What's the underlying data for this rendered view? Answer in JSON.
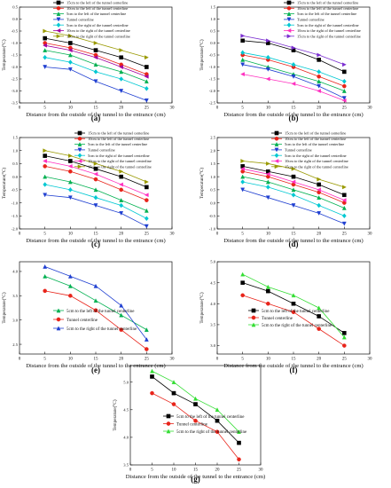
{
  "chart_data": [
    {
      "panel": "(a)",
      "type": "line",
      "xlabel": "Distance from the outside of the tunnel to the entrance (cm)",
      "ylabel": "Temperature(°C)",
      "xlim": [
        0,
        30
      ],
      "ylim": [
        -3.5,
        0.5
      ],
      "xticks": [
        0,
        5,
        10,
        15,
        20,
        25,
        30
      ],
      "yticks": [
        0.5,
        0.0,
        -0.5,
        -1.0,
        -1.5,
        -2.0,
        -2.5,
        -3.0,
        -3.5
      ],
      "legend_position": "top-right",
      "x": [
        5,
        10,
        15,
        20,
        25
      ],
      "series": [
        {
          "name": "15cm to the left of the tunnel centerline",
          "color": "#000000",
          "marker": "square",
          "values": [
            -0.8,
            -1.0,
            -1.3,
            -1.6,
            -2.0
          ]
        },
        {
          "name": "10cm to the left of the tunnel centerline",
          "color": "#e8241a",
          "marker": "circle",
          "values": [
            -1.0,
            -1.2,
            -1.5,
            -1.9,
            -2.3
          ]
        },
        {
          "name": "5cm to the left of the tunnel centerline",
          "color": "#00b050",
          "marker": "triangle-up",
          "values": [
            -1.3,
            -1.5,
            -1.9,
            -2.2,
            -2.6
          ]
        },
        {
          "name": "Tunnel centerline",
          "color": "#1f3fd1",
          "marker": "triangle-down",
          "values": [
            -2.0,
            -2.1,
            -2.6,
            -3.0,
            -3.4
          ]
        },
        {
          "name": "5cm to the right of the tunnel centerline",
          "color": "#00c8d2",
          "marker": "diamond",
          "values": [
            -1.6,
            -1.8,
            -2.2,
            -2.5,
            -2.9
          ]
        },
        {
          "name": "10cm to the right of the tunnel centerline",
          "color": "#a000a0",
          "marker": "triangle-left",
          "values": [
            -1.1,
            -1.3,
            -1.6,
            -2.0,
            -2.4
          ]
        },
        {
          "name": "15cm to the right of the tunnel centerline",
          "color": "#999900",
          "marker": "triangle-right",
          "values": [
            -0.5,
            -0.7,
            -1.0,
            -1.3,
            -1.6
          ]
        }
      ]
    },
    {
      "panel": "(b)",
      "type": "line",
      "xlabel": "Distance from the outside of the tunnel to the entrance (cm)",
      "ylabel": "Temperature(°C)",
      "xlim": [
        0,
        30
      ],
      "ylim": [
        -2.5,
        1.5
      ],
      "xticks": [
        0,
        5,
        10,
        15,
        20,
        25,
        30
      ],
      "yticks": [
        1.5,
        1.0,
        0.5,
        0.0,
        -0.5,
        -1.0,
        -1.5,
        -2.0,
        -2.5
      ],
      "legend_position": "top-right",
      "x": [
        5,
        10,
        15,
        20,
        25
      ],
      "series": [
        {
          "name": "15cm to the left of the tunnel centerline",
          "color": "#000000",
          "marker": "square",
          "values": [
            0.1,
            0.0,
            -0.3,
            -0.7,
            -1.2
          ]
        },
        {
          "name": "10cm to the left of the tunnel centerline",
          "color": "#e8241a",
          "marker": "circle",
          "values": [
            -0.5,
            -0.7,
            -1.0,
            -1.4,
            -1.8
          ]
        },
        {
          "name": "5cm to the left of the tunnel centerline",
          "color": "#00b050",
          "marker": "triangle-up",
          "values": [
            -0.7,
            -1.0,
            -1.3,
            -1.6,
            -2.0
          ]
        },
        {
          "name": "Tunnel centerline",
          "color": "#1f3fd1",
          "marker": "triangle-down",
          "values": [
            -0.9,
            -1.1,
            -1.4,
            -1.8,
            -2.3
          ]
        },
        {
          "name": "5cm to the right of the tunnel centerline",
          "color": "#00c8d2",
          "marker": "diamond",
          "values": [
            -0.4,
            -0.6,
            -0.9,
            -1.2,
            -1.6
          ]
        },
        {
          "name": "10cm to the right of the tunnel centerline",
          "color": "#ff30c0",
          "marker": "triangle-left",
          "values": [
            -1.3,
            -1.5,
            -1.7,
            -2.0,
            -2.4
          ]
        },
        {
          "name": "15cm to the right of the tunnel centerline",
          "color": "#7b2fd0",
          "marker": "triangle-right",
          "values": [
            0.3,
            0.1,
            -0.2,
            -0.5,
            -0.9
          ]
        }
      ]
    },
    {
      "panel": "(c)",
      "type": "line",
      "xlabel": "Distance from the outside of the tunnel to the entrance (cm)",
      "ylabel": "Temperature(°C)",
      "xlim": [
        0,
        30
      ],
      "ylim": [
        -2.0,
        1.5
      ],
      "xticks": [
        0,
        5,
        10,
        15,
        20,
        25,
        30
      ],
      "yticks": [
        1.5,
        1.0,
        0.5,
        0.0,
        -0.5,
        -1.0,
        -1.5,
        -2.0
      ],
      "legend_position": "top-right",
      "x": [
        5,
        10,
        15,
        20,
        25
      ],
      "series": [
        {
          "name": "15cm to the left of the tunnel centerline",
          "color": "#000000",
          "marker": "square",
          "values": [
            0.8,
            0.6,
            0.3,
            0.0,
            -0.4
          ]
        },
        {
          "name": "10cm to the left of the tunnel centerline",
          "color": "#e8241a",
          "marker": "circle",
          "values": [
            0.4,
            0.2,
            -0.1,
            -0.5,
            -0.9
          ]
        },
        {
          "name": "5cm to the left of the tunnel centerline",
          "color": "#00b050",
          "marker": "triangle-up",
          "values": [
            0.0,
            -0.2,
            -0.5,
            -0.9,
            -1.3
          ]
        },
        {
          "name": "Tunnel centerline",
          "color": "#1f3fd1",
          "marker": "triangle-down",
          "values": [
            -0.7,
            -0.8,
            -1.1,
            -1.4,
            -1.9
          ]
        },
        {
          "name": "5cm to the right of the tunnel centerline",
          "color": "#00c8d2",
          "marker": "diamond",
          "values": [
            -0.3,
            -0.5,
            -0.8,
            -1.1,
            -1.6
          ]
        },
        {
          "name": "10cm to the right of the tunnel centerline",
          "color": "#ff30c0",
          "marker": "triangle-left",
          "values": [
            0.6,
            0.4,
            0.1,
            -0.3,
            -0.7
          ]
        },
        {
          "name": "15cm to the right of the tunnel centerline",
          "color": "#999900",
          "marker": "triangle-right",
          "values": [
            1.0,
            0.8,
            0.5,
            0.2,
            -0.2
          ]
        }
      ]
    },
    {
      "panel": "(d)",
      "type": "line",
      "xlabel": "Distance from the outside of the tunnel to the entrance (cm)",
      "ylabel": "Temperature(°C)",
      "xlim": [
        0,
        30
      ],
      "ylim": [
        -1.0,
        2.5
      ],
      "xticks": [
        0,
        5,
        10,
        15,
        20,
        25,
        30
      ],
      "yticks": [
        2.5,
        2.0,
        1.5,
        1.0,
        0.5,
        0.0,
        -0.5,
        -1.0
      ],
      "legend_position": "top-right",
      "x": [
        5,
        10,
        15,
        20,
        25
      ],
      "series": [
        {
          "name": "15cm to the left of the tunnel centerline",
          "color": "#000000",
          "marker": "square",
          "values": [
            1.4,
            1.2,
            1.0,
            0.7,
            0.3
          ]
        },
        {
          "name": "10cm to the left of the tunnel centerline",
          "color": "#e8241a",
          "marker": "circle",
          "values": [
            1.2,
            1.0,
            0.7,
            0.4,
            0.0
          ]
        },
        {
          "name": "5cm to the left of the tunnel centerline",
          "color": "#00b050",
          "marker": "triangle-up",
          "values": [
            1.0,
            0.8,
            0.5,
            0.2,
            -0.2
          ]
        },
        {
          "name": "Tunnel centerline",
          "color": "#1f3fd1",
          "marker": "triangle-down",
          "values": [
            0.5,
            0.2,
            -0.1,
            -0.4,
            -0.8
          ]
        },
        {
          "name": "5cm to the right of the tunnel centerline",
          "color": "#00c8d2",
          "marker": "diamond",
          "values": [
            0.8,
            0.6,
            0.3,
            -0.1,
            -0.5
          ]
        },
        {
          "name": "10cm to the right of the tunnel centerline",
          "color": "#ff30c0",
          "marker": "triangle-left",
          "values": [
            1.3,
            1.1,
            0.8,
            0.5,
            0.1
          ]
        },
        {
          "name": "15cm to the right of the tunnel centerline",
          "color": "#999900",
          "marker": "triangle-right",
          "values": [
            1.6,
            1.5,
            1.3,
            0.9,
            0.6
          ]
        }
      ]
    },
    {
      "panel": "(e)",
      "type": "line",
      "xlabel": "Distance from the outside of the tunnel to the entrance (cm)",
      "ylabel": "Temperature(°C)",
      "xlim": [
        0,
        30
      ],
      "ylim": [
        2.3,
        4.2
      ],
      "xticks": [
        0,
        5,
        10,
        15,
        20,
        25,
        30
      ],
      "yticks": [
        4.0,
        3.5,
        3.0,
        2.5
      ],
      "legend_position": "bottom-left",
      "x": [
        5,
        10,
        15,
        20,
        25
      ],
      "series": [
        {
          "name": "5cm to the left of the tunnel centerline",
          "color": "#00b050",
          "marker": "triangle-up",
          "values": [
            3.9,
            3.7,
            3.4,
            3.1,
            2.8
          ]
        },
        {
          "name": "Tunnel centerline",
          "color": "#e8241a",
          "marker": "circle",
          "values": [
            3.6,
            3.5,
            3.2,
            2.8,
            2.4
          ]
        },
        {
          "name": "5cm to the right of the tunnel centerline",
          "color": "#1f3fd1",
          "marker": "triangle-up",
          "values": [
            4.1,
            3.9,
            3.7,
            3.3,
            2.6
          ]
        }
      ]
    },
    {
      "panel": "(f)",
      "type": "line",
      "xlabel": "Distance from the outside of the tunnel to the entrance (cm)",
      "ylabel": "Temperature(°C)",
      "xlim": [
        0,
        30
      ],
      "ylim": [
        2.8,
        5.0
      ],
      "xticks": [
        0,
        5,
        10,
        15,
        20,
        25,
        30
      ],
      "yticks": [
        5.0,
        4.5,
        4.0,
        3.5,
        3.0
      ],
      "legend_position": "bottom-left",
      "x": [
        5,
        10,
        15,
        20,
        25
      ],
      "series": [
        {
          "name": "5cm to the left of the tunnel centerline",
          "color": "#000000",
          "marker": "square",
          "values": [
            4.5,
            4.3,
            4.0,
            3.7,
            3.3
          ]
        },
        {
          "name": "Tunnel centerline",
          "color": "#e8241a",
          "marker": "circle",
          "values": [
            4.2,
            4.0,
            3.8,
            3.4,
            3.0
          ]
        },
        {
          "name": "5cm to the right of the tunnel centerline",
          "color": "#33dd33",
          "marker": "triangle-up",
          "values": [
            4.7,
            4.4,
            4.2,
            3.9,
            3.2
          ]
        }
      ]
    },
    {
      "panel": "(g)",
      "type": "line",
      "xlabel": "Distance from the outside of the tunnel to the entrance (cm)",
      "ylabel": "Temperature(°C)",
      "xlim": [
        0,
        30
      ],
      "ylim": [
        3.5,
        5.3
      ],
      "xticks": [
        0,
        5,
        10,
        15,
        20,
        25,
        30
      ],
      "yticks": [
        5.0,
        4.5,
        4.0,
        3.5
      ],
      "legend_position": "bottom-left",
      "x": [
        5,
        10,
        15,
        20,
        25
      ],
      "series": [
        {
          "name": "5cm to the left of the tunnel centerline",
          "color": "#000000",
          "marker": "square",
          "values": [
            5.1,
            4.8,
            4.6,
            4.3,
            3.9
          ]
        },
        {
          "name": "Tunnel centerline",
          "color": "#e8241a",
          "marker": "circle",
          "values": [
            4.8,
            4.6,
            4.3,
            4.1,
            3.6
          ]
        },
        {
          "name": "5cm to the right of the tunnel centerline",
          "color": "#33dd33",
          "marker": "triangle-up",
          "values": [
            5.2,
            5.0,
            4.7,
            4.5,
            4.1
          ]
        }
      ]
    }
  ]
}
